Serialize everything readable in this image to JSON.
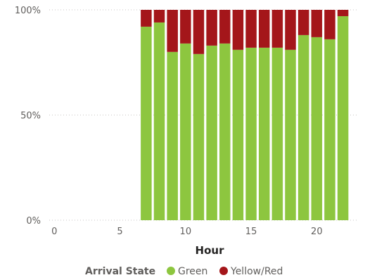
{
  "chart_data": {
    "type": "bar",
    "stacked": "percent",
    "x": [
      7,
      8,
      9,
      10,
      11,
      12,
      13,
      14,
      15,
      16,
      17,
      18,
      19,
      20,
      21,
      22
    ],
    "series": [
      {
        "name": "Green",
        "values": [
          92,
          94,
          80,
          84,
          79,
          83,
          84,
          81,
          82,
          82,
          82,
          81,
          88,
          87,
          86,
          97
        ]
      },
      {
        "name": "Yellow/Red",
        "values": [
          8,
          6,
          20,
          16,
          21,
          17,
          16,
          19,
          18,
          18,
          18,
          19,
          12,
          13,
          14,
          3
        ]
      }
    ],
    "colors": {
      "Green": "#8dc63f",
      "Yellow/Red": "#a4161a"
    },
    "xlabel": "Hour",
    "ylabel": "",
    "xlim": [
      -0.5,
      23.2
    ],
    "ylim": [
      0,
      100
    ],
    "x_ticks": [
      "0",
      "5",
      "10",
      "15",
      "20"
    ],
    "y_ticks": [
      "0%",
      "50%",
      "100%"
    ],
    "grid": true,
    "legend": {
      "title": "Arrival State",
      "placement": "bottom"
    }
  }
}
